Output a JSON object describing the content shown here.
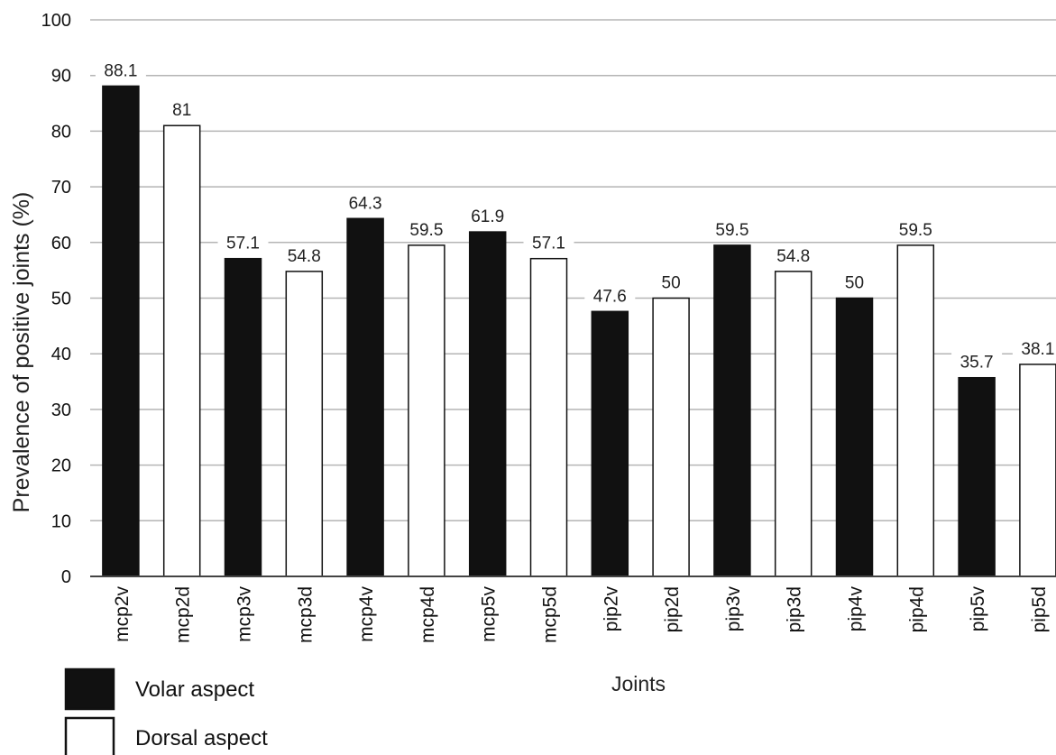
{
  "chart_data": {
    "type": "bar",
    "title": "",
    "xlabel": "Joints",
    "ylabel": "Prevalence of positive joints (%)",
    "ylim": [
      0,
      100
    ],
    "yticks": [
      0,
      10,
      20,
      30,
      40,
      50,
      60,
      70,
      80,
      90,
      100
    ],
    "grid": true,
    "legend_position": "bottom-left",
    "categories": [
      "mcp2v",
      "mcp2d",
      "mcp3v",
      "mcp3d",
      "mcp4v",
      "mcp4d",
      "mcp5v",
      "mcp5d",
      "pip2v",
      "pip2d",
      "pip3v",
      "pip3d",
      "pip4v",
      "pip4d",
      "pip5v",
      "pip5d"
    ],
    "values": [
      88.1,
      81,
      57.1,
      54.8,
      64.3,
      59.5,
      61.9,
      57.1,
      47.6,
      50,
      59.5,
      54.8,
      50,
      59.5,
      35.7,
      38.1
    ],
    "value_labels": [
      "88.1",
      "81",
      "57.1",
      "54.8",
      "64.3",
      "59.5",
      "61.9",
      "57.1",
      "47.6",
      "50",
      "59.5",
      "54.8",
      "50",
      "59.5",
      "35.7",
      "38.1"
    ],
    "bar_series": [
      "volar",
      "dorsal",
      "volar",
      "dorsal",
      "volar",
      "dorsal",
      "volar",
      "dorsal",
      "volar",
      "dorsal",
      "volar",
      "dorsal",
      "volar",
      "dorsal",
      "volar",
      "dorsal"
    ],
    "legend": [
      {
        "key": "volar",
        "label": "Volar aspect",
        "color": "#111111"
      },
      {
        "key": "dorsal",
        "label": "Dorsal aspect",
        "color": "#ffffff"
      }
    ],
    "colors": {
      "grid": "#b5b5b5",
      "axis": "#444444",
      "bar_stroke": "#111111"
    }
  }
}
